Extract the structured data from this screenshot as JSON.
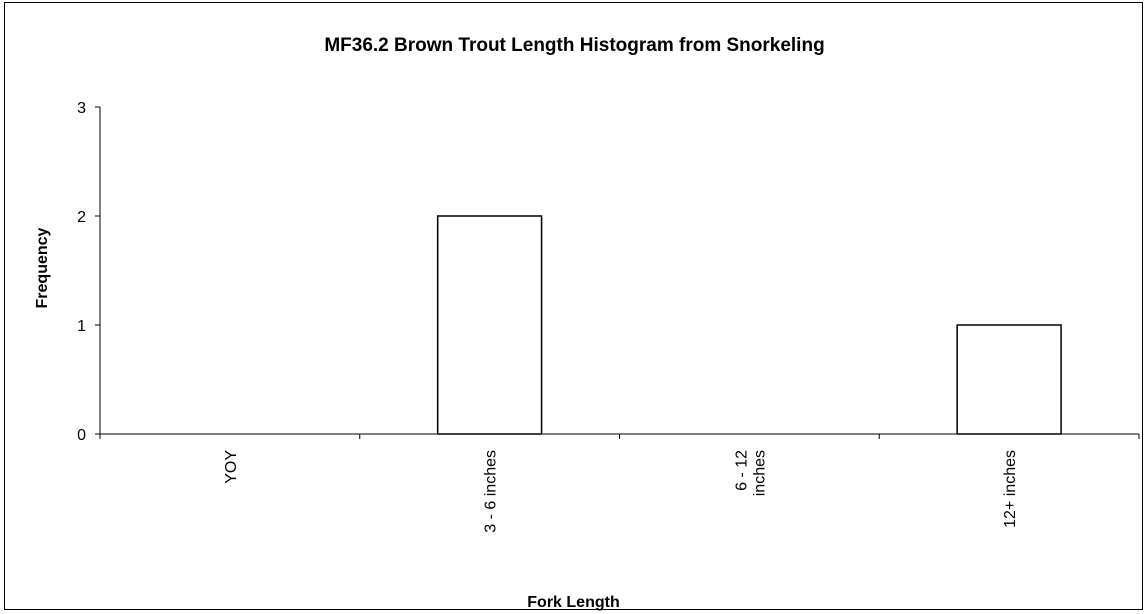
{
  "chart_data": {
    "type": "bar",
    "title": "MF36.2 Brown Trout Length Histogram from Snorkeling",
    "xlabel": "Fork Length",
    "ylabel": "Frequency",
    "categories": [
      [
        "YOY"
      ],
      [
        "3 - 6 inches"
      ],
      [
        "6 - 12",
        "inches"
      ],
      [
        "12+ inches"
      ]
    ],
    "values": [
      0,
      2,
      0,
      1
    ],
    "ylim": [
      0,
      3
    ],
    "yticks": [
      "0",
      "1",
      "2",
      "3"
    ],
    "grid": false,
    "legend": "none",
    "bar_fill": "#ffffff",
    "bar_stroke": "#000000"
  }
}
